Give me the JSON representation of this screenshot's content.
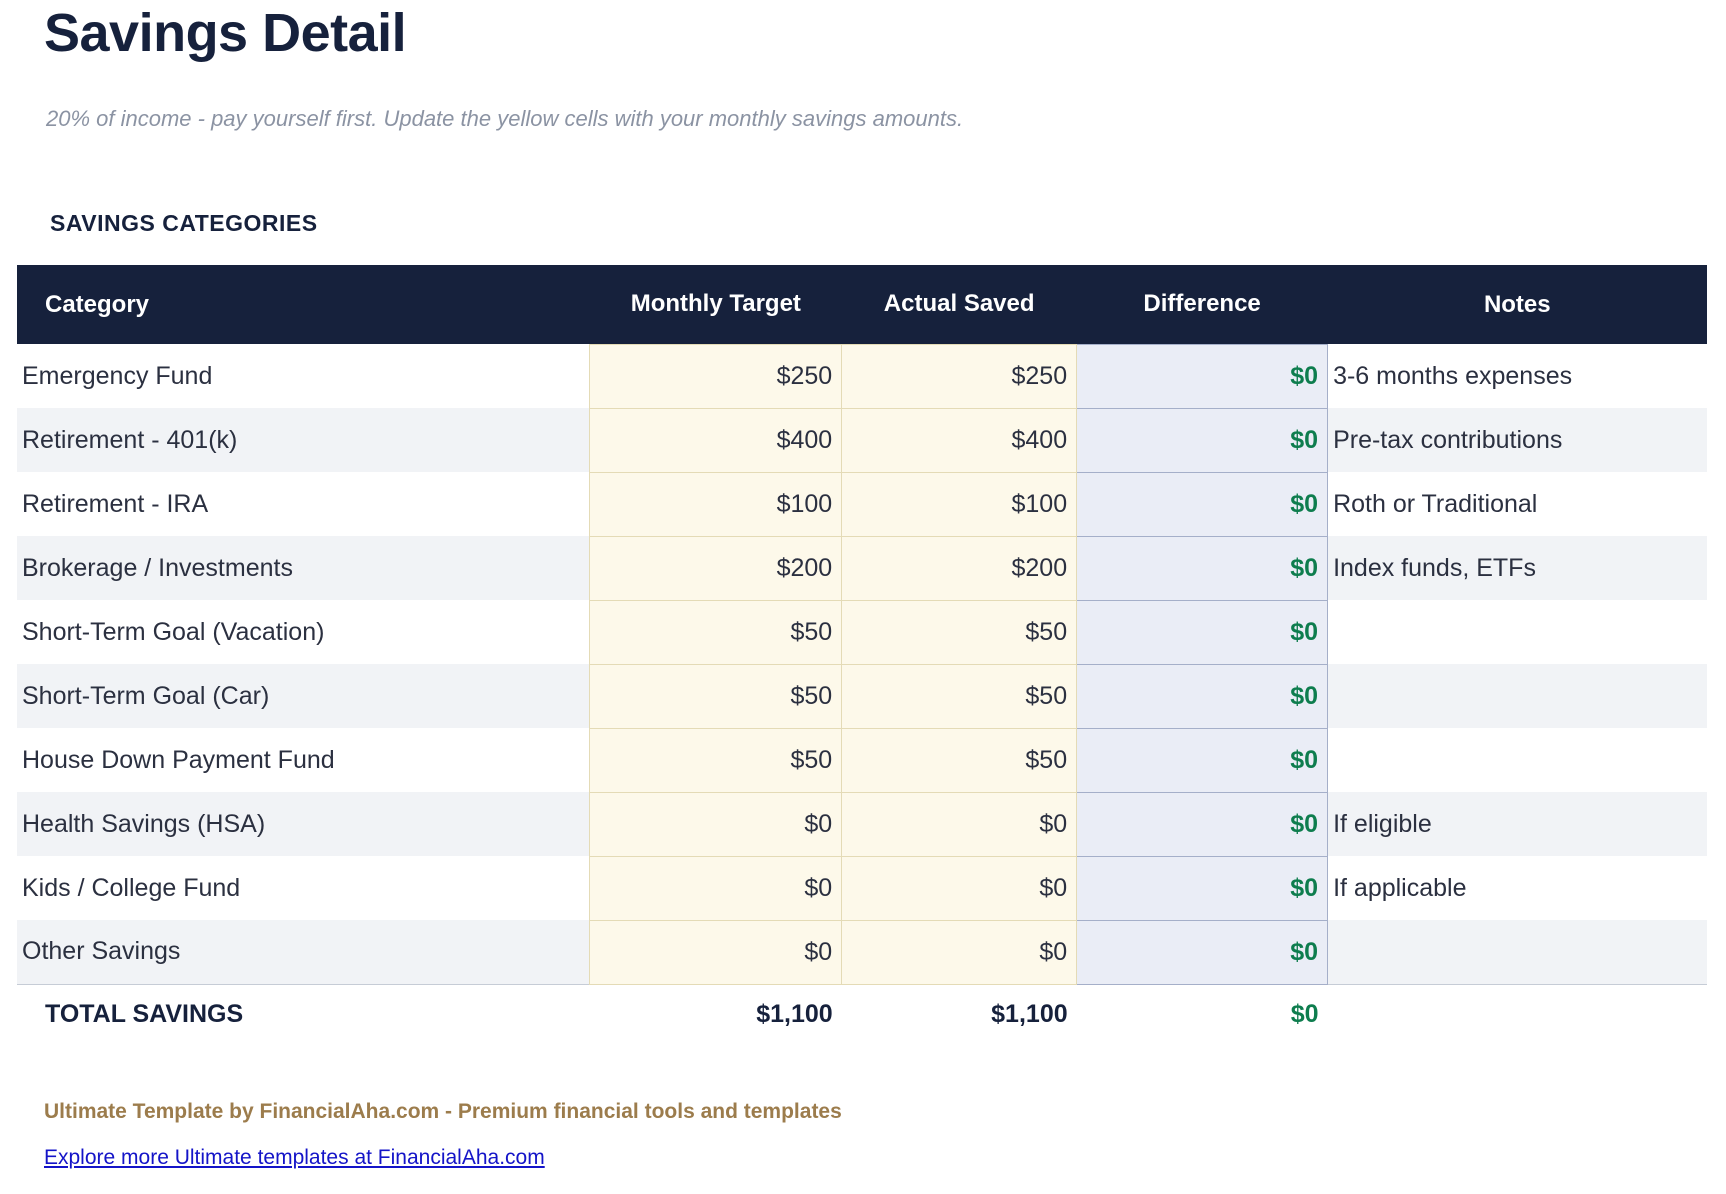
{
  "page": {
    "title": "Savings Detail",
    "subtitle": "20% of income - pay yourself first. Update the yellow cells with your monthly savings amounts.",
    "section_heading": "SAVINGS CATEGORIES"
  },
  "table": {
    "columns": [
      "Category",
      "Monthly Target",
      "Actual Saved",
      "Difference",
      "Notes"
    ],
    "rows": [
      {
        "category": "Emergency Fund",
        "monthly_target": "$250",
        "actual_saved": "$250",
        "difference": "$0",
        "notes": "3-6 months expenses"
      },
      {
        "category": "Retirement - 401(k)",
        "monthly_target": "$400",
        "actual_saved": "$400",
        "difference": "$0",
        "notes": "Pre-tax contributions"
      },
      {
        "category": "Retirement - IRA",
        "monthly_target": "$100",
        "actual_saved": "$100",
        "difference": "$0",
        "notes": "Roth or Traditional"
      },
      {
        "category": "Brokerage / Investments",
        "monthly_target": "$200",
        "actual_saved": "$200",
        "difference": "$0",
        "notes": "Index funds, ETFs"
      },
      {
        "category": "Short-Term Goal (Vacation)",
        "monthly_target": "$50",
        "actual_saved": "$50",
        "difference": "$0",
        "notes": ""
      },
      {
        "category": "Short-Term Goal (Car)",
        "monthly_target": "$50",
        "actual_saved": "$50",
        "difference": "$0",
        "notes": ""
      },
      {
        "category": "House Down Payment Fund",
        "monthly_target": "$50",
        "actual_saved": "$50",
        "difference": "$0",
        "notes": ""
      },
      {
        "category": "Health Savings (HSA)",
        "monthly_target": "$0",
        "actual_saved": "$0",
        "difference": "$0",
        "notes": "If eligible"
      },
      {
        "category": "Kids / College Fund",
        "monthly_target": "$0",
        "actual_saved": "$0",
        "difference": "$0",
        "notes": "If applicable"
      },
      {
        "category": "Other Savings",
        "monthly_target": "$0",
        "actual_saved": "$0",
        "difference": "$0",
        "notes": ""
      }
    ],
    "total": {
      "label": "TOTAL SAVINGS",
      "monthly_target": "$1,100",
      "actual_saved": "$1,100",
      "difference": "$0"
    }
  },
  "footer": {
    "brand_line": "Ultimate Template by FinancialAha.com - Premium financial tools and templates",
    "link_text": "Explore more Ultimate templates at FinancialAha.com"
  },
  "colors": {
    "navy": "#16213c",
    "green": "#0e7d4e",
    "input_cell_bg": "#fdf9ea",
    "input_cell_border": "#e4dbb6",
    "diff_cell_bg": "#eaedf6",
    "diff_cell_border": "#a5afc9",
    "alt_row_bg": "#f1f3f6",
    "brand_gold": "#9c7c4c",
    "link_blue": "#1414c8"
  }
}
